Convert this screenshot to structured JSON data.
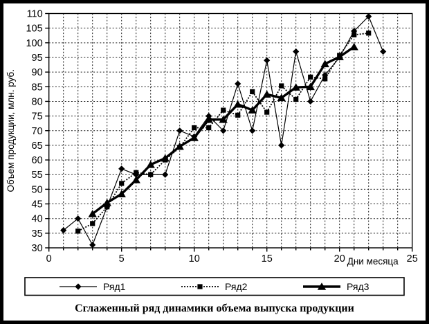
{
  "figure": {
    "caption": "Сглаженный ряд динамики объема выпуска продукции",
    "fg_color": "#000000",
    "bg_color": "#ffffff"
  },
  "legend": {
    "entries": [
      {
        "label": "Ряд1",
        "marker": "diamond",
        "line": "thin-solid"
      },
      {
        "label": "Ряд2",
        "marker": "square",
        "line": "dotted"
      },
      {
        "label": "Ряд3",
        "marker": "triangle",
        "line": "thick-solid"
      }
    ]
  },
  "chart_data": {
    "type": "line",
    "title": "",
    "xlabel": "Дни месяца",
    "ylabel": "Объем продукции, млн. руб.",
    "xlim": [
      0,
      25
    ],
    "ylim": [
      30,
      110
    ],
    "x_tick_labels": [
      0,
      5,
      10,
      15,
      20,
      25
    ],
    "y_tick_step": 5,
    "x_grid_step": 1,
    "grid": true,
    "legend_position": "bottom",
    "series": [
      {
        "name": "Ряд1",
        "marker": "diamond",
        "line": "thin-solid",
        "x": [
          1,
          2,
          3,
          4,
          5,
          6,
          7,
          8,
          9,
          10,
          11,
          12,
          13,
          14,
          15,
          16,
          17,
          18,
          19,
          20,
          21,
          22,
          23
        ],
        "values": [
          36,
          40,
          31,
          44,
          57,
          55,
          55,
          55,
          70,
          68,
          75,
          70,
          86,
          70,
          94,
          65,
          97,
          80,
          89,
          95,
          104,
          109,
          97
        ]
      },
      {
        "name": "Ряд2",
        "marker": "square",
        "line": "dotted",
        "x": [
          2,
          3,
          4,
          5,
          6,
          7,
          8,
          9,
          10,
          11,
          12,
          13,
          14,
          15,
          16,
          17,
          18,
          19,
          20,
          21,
          22
        ],
        "values": [
          35.7,
          38.3,
          44,
          52,
          55.7,
          55,
          60,
          64.3,
          71,
          71,
          77,
          75.3,
          83.3,
          76.3,
          85.3,
          80.7,
          88.3,
          87.7,
          95.7,
          102.7,
          103.3
        ]
      },
      {
        "name": "Ряд3",
        "marker": "triangle",
        "line": "thick-solid",
        "x": [
          3,
          4,
          5,
          6,
          7,
          8,
          9,
          10,
          11,
          12,
          13,
          14,
          15,
          16,
          17,
          18,
          19,
          20,
          21
        ],
        "values": [
          41.6,
          45.4,
          48.4,
          53.2,
          58.4,
          60.6,
          64.6,
          67.6,
          73.8,
          73.8,
          79,
          77,
          82.4,
          81.2,
          84.8,
          85,
          92.8,
          95.2,
          98.6
        ]
      }
    ]
  }
}
